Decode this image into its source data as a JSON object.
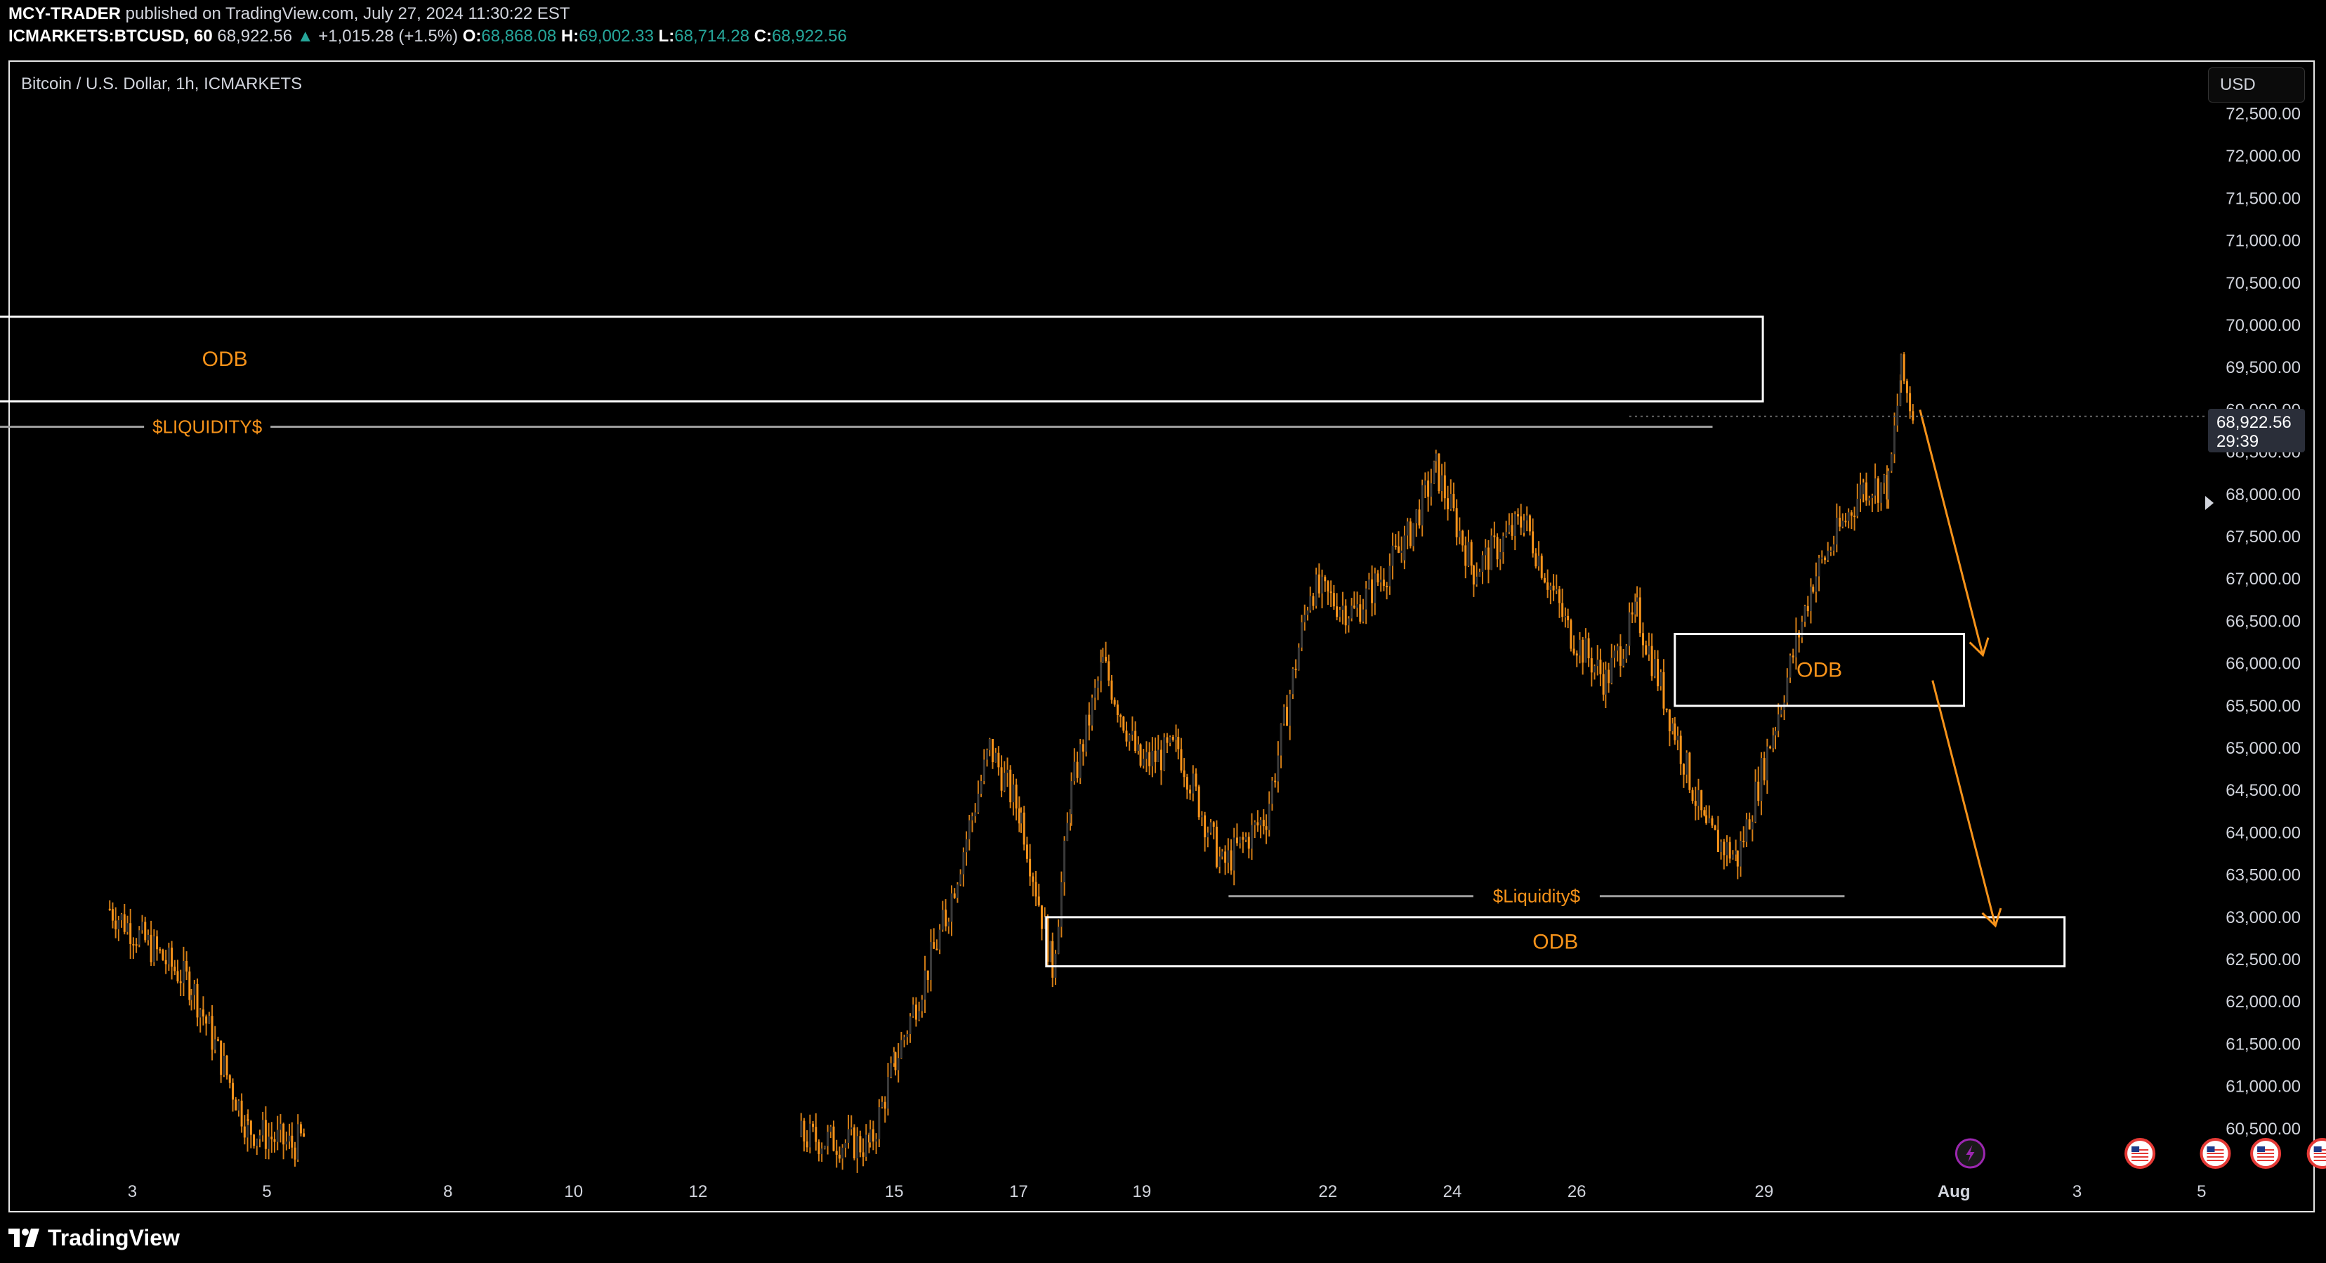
{
  "header": {
    "publisher": "MCY-TRADER",
    "published_text": "published on TradingView.com, July 27, 2024 11:30:22 EST",
    "symbol": "ICMARKETS:BTCUSD, 60",
    "last": "68,922.56",
    "change": "+1,015.28 (+1.5%)",
    "o_label": "O:",
    "o_val": "68,868.08",
    "h_label": "H:",
    "h_val": "69,002.33",
    "l_label": "L:",
    "l_val": "68,714.28",
    "c_label": "C:",
    "c_val": "68,922.56"
  },
  "chart_title": "Bitcoin / U.S. Dollar, 1h, ICMARKETS",
  "currency_button": "USD",
  "footer_brand": "TradingView",
  "price_badge": {
    "price": "68,922.56",
    "countdown": "29:39"
  },
  "colors": {
    "background": "#000000",
    "candle": "#f7931a",
    "annotation": "#f7931a",
    "box": "#ffffff",
    "liquidity_line": "#9e9e9e",
    "badge": "#2a2e39"
  },
  "chart_data": {
    "type": "candlestick",
    "title": "Bitcoin / U.S. Dollar, 1h, ICMARKETS",
    "y_ticks": [
      "72,500.00",
      "72,000.00",
      "71,500.00",
      "71,000.00",
      "70,500.00",
      "70,000.00",
      "69,500.00",
      "69,000.00",
      "68,500.00",
      "68,000.00",
      "67,500.00",
      "67,000.00",
      "66,500.00",
      "66,000.00",
      "65,500.00",
      "65,000.00",
      "64,500.00",
      "64,000.00",
      "63,500.00",
      "63,000.00",
      "62,500.00",
      "62,000.00",
      "61,500.00",
      "61,000.00",
      "60,500.00"
    ],
    "x_ticks": [
      "3",
      "5",
      "8",
      "10",
      "12",
      "15",
      "17",
      "19",
      "22",
      "24",
      "26",
      "29",
      "Aug",
      "3",
      "5"
    ],
    "ylim": [
      60300,
      72800
    ],
    "price_path": [
      [
        1.5,
        63100
      ],
      [
        2.8,
        62200
      ],
      [
        3.7,
        60500
      ],
      [
        4.4,
        60300
      ],
      [
        4.6,
        60400
      ],
      [
        12.5,
        60400
      ],
      [
        13.6,
        60300
      ],
      [
        14.0,
        61300
      ],
      [
        14.8,
        63000
      ],
      [
        15.5,
        65000
      ],
      [
        16.0,
        64200
      ],
      [
        16.5,
        62400
      ],
      [
        16.8,
        64500
      ],
      [
        17.3,
        66000
      ],
      [
        17.9,
        64800
      ],
      [
        18.5,
        65000
      ],
      [
        19.2,
        63600
      ],
      [
        19.9,
        64200
      ],
      [
        20.6,
        66900
      ],
      [
        21.3,
        66600
      ],
      [
        22.1,
        67400
      ],
      [
        22.6,
        68300
      ],
      [
        23.2,
        67100
      ],
      [
        24.0,
        67700
      ],
      [
        24.7,
        66400
      ],
      [
        25.3,
        65800
      ],
      [
        25.8,
        66600
      ],
      [
        26.4,
        65200
      ],
      [
        26.9,
        64000
      ],
      [
        27.4,
        63700
      ],
      [
        28.0,
        65300
      ],
      [
        28.6,
        67000
      ],
      [
        29.4,
        68100
      ],
      [
        29.8,
        68100
      ],
      [
        30.0,
        69450
      ],
      [
        30.2,
        68922.56
      ]
    ],
    "annotations": [
      {
        "type": "box",
        "label": "ODB",
        "x_from": -0.3,
        "x_to": 27.8,
        "y_from": 69100,
        "y_to": 70100
      },
      {
        "type": "box",
        "label": "ODB",
        "x_from": 26.4,
        "x_to": 31.0,
        "y_from": 65500,
        "y_to": 66350
      },
      {
        "type": "box",
        "label": "ODB",
        "x_from": 16.4,
        "x_to": 32.6,
        "y_from": 62420,
        "y_to": 63000
      },
      {
        "type": "line",
        "label": "$LIQUIDITY$",
        "x_from": -0.3,
        "x_to": 27.0,
        "y": 68800
      },
      {
        "type": "line",
        "label": "$Liquidity$",
        "x_from": 19.3,
        "x_to": 29.1,
        "y": 63250
      },
      {
        "type": "arrow",
        "x_from": 30.3,
        "y_from": 69000,
        "x_to": 31.3,
        "y_to": 66100
      },
      {
        "type": "arrow",
        "x_from": 30.5,
        "y_from": 65800,
        "x_to": 31.5,
        "y_to": 62900
      }
    ],
    "events": [
      {
        "type": "flash",
        "x": 31.1
      },
      {
        "type": "us-flag",
        "x": 33.8
      },
      {
        "type": "us-flag",
        "x": 35.0
      },
      {
        "type": "us-flag",
        "x": 35.8
      },
      {
        "type": "us-flag",
        "x": 36.7
      }
    ]
  }
}
